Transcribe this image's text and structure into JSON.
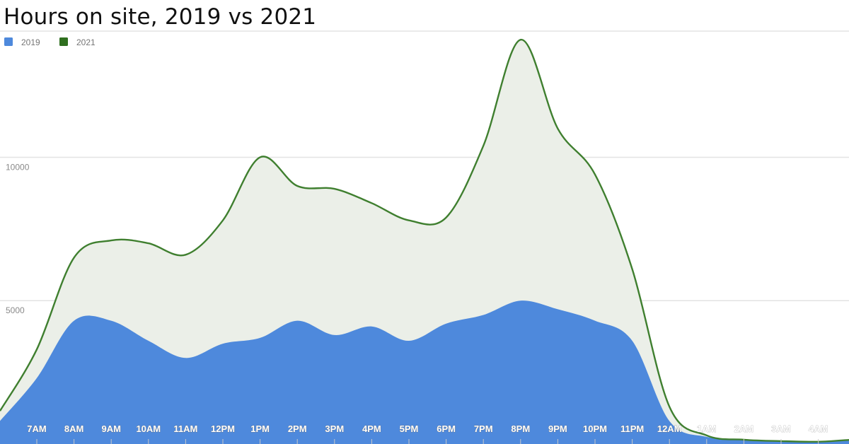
{
  "chart_data": {
    "type": "area",
    "title": "Hours on site, 2019 vs 2021",
    "categories": [
      "7AM",
      "8AM",
      "9AM",
      "10AM",
      "11AM",
      "12PM",
      "1PM",
      "2PM",
      "3PM",
      "4PM",
      "5PM",
      "6PM",
      "7PM",
      "8PM",
      "9PM",
      "10PM",
      "11PM",
      "12AM",
      "1AM",
      "2AM",
      "3AM",
      "4AM"
    ],
    "series": [
      {
        "name": "2019",
        "color": "#4e89dc",
        "values": [
          2300,
          4300,
          4300,
          3600,
          3000,
          3500,
          3700,
          4300,
          3800,
          4100,
          3600,
          4200,
          4500,
          5000,
          4700,
          4300,
          3600,
          800,
          250,
          150,
          100,
          80
        ]
      },
      {
        "name": "2021",
        "color": "#3f7f2f",
        "values": [
          3300,
          6500,
          7100,
          7000,
          6600,
          7800,
          10000,
          9000,
          8900,
          8400,
          7800,
          7900,
          10400,
          14100,
          11000,
          9400,
          6100,
          1300,
          300,
          150,
          100,
          80
        ]
      }
    ],
    "yticks": [
      5000,
      10000
    ],
    "ylim": [
      0,
      14400
    ],
    "grid": true,
    "legend_position": "top-left"
  }
}
